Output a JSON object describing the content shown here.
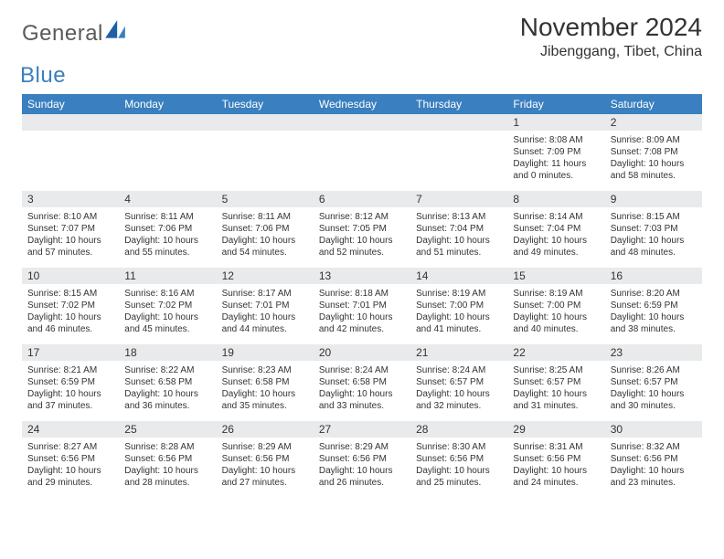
{
  "brand": {
    "part1": "General",
    "part2": "Blue"
  },
  "title": "November 2024",
  "location": "Jibenggang, Tibet, China",
  "colors": {
    "header_bg": "#3a7fbf",
    "header_text": "#ffffff",
    "daynum_bg": "#e9eaec",
    "border": "#3a7fbf",
    "text": "#333333",
    "logo_gray": "#5a5a5a",
    "logo_blue": "#3a7fbf",
    "page_bg": "#ffffff"
  },
  "typography": {
    "title_fontsize": 28,
    "subtitle_fontsize": 16,
    "dayhead_fontsize": 12,
    "daynum_fontsize": 12,
    "cell_fontsize": 10
  },
  "day_headers": [
    "Sunday",
    "Monday",
    "Tuesday",
    "Wednesday",
    "Thursday",
    "Friday",
    "Saturday"
  ],
  "weeks": [
    [
      null,
      null,
      null,
      null,
      null,
      {
        "n": "1",
        "sunrise": "8:08 AM",
        "sunset": "7:09 PM",
        "daylight": "11 hours and 0 minutes."
      },
      {
        "n": "2",
        "sunrise": "8:09 AM",
        "sunset": "7:08 PM",
        "daylight": "10 hours and 58 minutes."
      }
    ],
    [
      {
        "n": "3",
        "sunrise": "8:10 AM",
        "sunset": "7:07 PM",
        "daylight": "10 hours and 57 minutes."
      },
      {
        "n": "4",
        "sunrise": "8:11 AM",
        "sunset": "7:06 PM",
        "daylight": "10 hours and 55 minutes."
      },
      {
        "n": "5",
        "sunrise": "8:11 AM",
        "sunset": "7:06 PM",
        "daylight": "10 hours and 54 minutes."
      },
      {
        "n": "6",
        "sunrise": "8:12 AM",
        "sunset": "7:05 PM",
        "daylight": "10 hours and 52 minutes."
      },
      {
        "n": "7",
        "sunrise": "8:13 AM",
        "sunset": "7:04 PM",
        "daylight": "10 hours and 51 minutes."
      },
      {
        "n": "8",
        "sunrise": "8:14 AM",
        "sunset": "7:04 PM",
        "daylight": "10 hours and 49 minutes."
      },
      {
        "n": "9",
        "sunrise": "8:15 AM",
        "sunset": "7:03 PM",
        "daylight": "10 hours and 48 minutes."
      }
    ],
    [
      {
        "n": "10",
        "sunrise": "8:15 AM",
        "sunset": "7:02 PM",
        "daylight": "10 hours and 46 minutes."
      },
      {
        "n": "11",
        "sunrise": "8:16 AM",
        "sunset": "7:02 PM",
        "daylight": "10 hours and 45 minutes."
      },
      {
        "n": "12",
        "sunrise": "8:17 AM",
        "sunset": "7:01 PM",
        "daylight": "10 hours and 44 minutes."
      },
      {
        "n": "13",
        "sunrise": "8:18 AM",
        "sunset": "7:01 PM",
        "daylight": "10 hours and 42 minutes."
      },
      {
        "n": "14",
        "sunrise": "8:19 AM",
        "sunset": "7:00 PM",
        "daylight": "10 hours and 41 minutes."
      },
      {
        "n": "15",
        "sunrise": "8:19 AM",
        "sunset": "7:00 PM",
        "daylight": "10 hours and 40 minutes."
      },
      {
        "n": "16",
        "sunrise": "8:20 AM",
        "sunset": "6:59 PM",
        "daylight": "10 hours and 38 minutes."
      }
    ],
    [
      {
        "n": "17",
        "sunrise": "8:21 AM",
        "sunset": "6:59 PM",
        "daylight": "10 hours and 37 minutes."
      },
      {
        "n": "18",
        "sunrise": "8:22 AM",
        "sunset": "6:58 PM",
        "daylight": "10 hours and 36 minutes."
      },
      {
        "n": "19",
        "sunrise": "8:23 AM",
        "sunset": "6:58 PM",
        "daylight": "10 hours and 35 minutes."
      },
      {
        "n": "20",
        "sunrise": "8:24 AM",
        "sunset": "6:58 PM",
        "daylight": "10 hours and 33 minutes."
      },
      {
        "n": "21",
        "sunrise": "8:24 AM",
        "sunset": "6:57 PM",
        "daylight": "10 hours and 32 minutes."
      },
      {
        "n": "22",
        "sunrise": "8:25 AM",
        "sunset": "6:57 PM",
        "daylight": "10 hours and 31 minutes."
      },
      {
        "n": "23",
        "sunrise": "8:26 AM",
        "sunset": "6:57 PM",
        "daylight": "10 hours and 30 minutes."
      }
    ],
    [
      {
        "n": "24",
        "sunrise": "8:27 AM",
        "sunset": "6:56 PM",
        "daylight": "10 hours and 29 minutes."
      },
      {
        "n": "25",
        "sunrise": "8:28 AM",
        "sunset": "6:56 PM",
        "daylight": "10 hours and 28 minutes."
      },
      {
        "n": "26",
        "sunrise": "8:29 AM",
        "sunset": "6:56 PM",
        "daylight": "10 hours and 27 minutes."
      },
      {
        "n": "27",
        "sunrise": "8:29 AM",
        "sunset": "6:56 PM",
        "daylight": "10 hours and 26 minutes."
      },
      {
        "n": "28",
        "sunrise": "8:30 AM",
        "sunset": "6:56 PM",
        "daylight": "10 hours and 25 minutes."
      },
      {
        "n": "29",
        "sunrise": "8:31 AM",
        "sunset": "6:56 PM",
        "daylight": "10 hours and 24 minutes."
      },
      {
        "n": "30",
        "sunrise": "8:32 AM",
        "sunset": "6:56 PM",
        "daylight": "10 hours and 23 minutes."
      }
    ]
  ],
  "labels": {
    "sunrise": "Sunrise:",
    "sunset": "Sunset:",
    "daylight": "Daylight:"
  }
}
